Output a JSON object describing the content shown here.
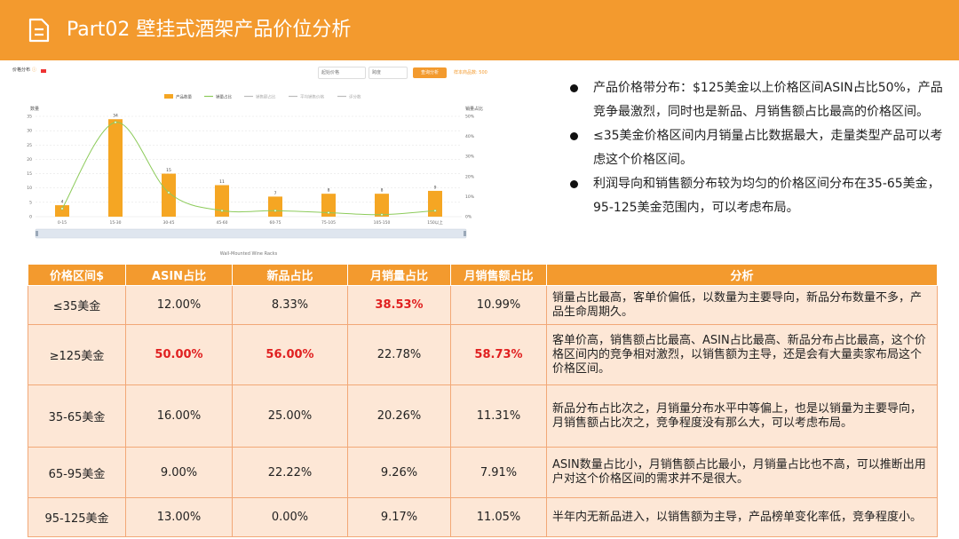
{
  "header": {
    "title": "Part02 壁挂式酒架产品价位分析",
    "icon": "document-icon",
    "background": "#F39A2E"
  },
  "widget": {
    "title": "价格分布",
    "start_price_placeholder": "起始价格",
    "price_placeholder": "跨度",
    "query_button": "查询分析",
    "sample_text": "样本商品数: 500"
  },
  "chart_data": {
    "type": "bar",
    "categories": [
      "0-15",
      "15-30",
      "30-45",
      "45-60",
      "60-75",
      "75-105",
      "105-150",
      "150以上"
    ],
    "series": [
      {
        "name": "产品数量",
        "values": [
          4,
          34,
          15,
          11,
          7,
          8,
          8,
          9
        ],
        "color": "#F5A623"
      },
      {
        "name": "销量占比",
        "values": [
          4,
          47,
          12,
          3,
          3,
          2,
          1,
          3
        ],
        "color": "#8DCB5B"
      }
    ],
    "legend": [
      "产品数量",
      "销量占比",
      "销售额占比",
      "平均销售价格",
      "评分数"
    ],
    "ylabel_left": "数量",
    "ylabel_right": "销量占比",
    "left_ticks": [
      "0",
      "5",
      "10",
      "15",
      "20",
      "25",
      "30",
      "35"
    ],
    "right_ticks": [
      "0%",
      "10%",
      "20%",
      "30%",
      "40%",
      "50%"
    ],
    "ylim": [
      0,
      35
    ],
    "ylim_right": [
      0,
      50
    ],
    "xlabel": "Wall-Mounted Wine Racks"
  },
  "bullets": [
    "产品价格带分布：$125美金以上价格区间ASIN占比50%，产品竞争最激烈，同时也是新品、月销售额占比最高的价格区间。",
    "≤35美金价格区间内月销量占比数据最大，走量类型产品可以考虑这个价格区间。",
    "利润导向和销售额分布较为均匀的价格区间分布在35-65美金，95-125美金范围内，可以考虑布局。"
  ],
  "table": {
    "headers": [
      "价格区间$",
      "ASIN占比",
      "新品占比",
      "月销量占比",
      "月销售额占比",
      "分析"
    ],
    "rows": [
      [
        "≤35美金",
        "12.00%",
        "8.33%",
        "38.53%",
        "10.99%",
        "销量占比最高，客单价偏低，以数量为主要导向，新品分布数量不多，产品生命周期久。"
      ],
      [
        "≥125美金",
        "50.00%",
        "56.00%",
        "22.78%",
        "58.73%",
        "客单价高，销售额占比最高、ASIN占比最高、新品分布占比最高，这个价格区间内的竞争相对激烈，以销售额为主导，还是会有大量卖家布局这个价格区间。"
      ],
      [
        "35-65美金",
        "16.00%",
        "25.00%",
        "20.26%",
        "11.31%",
        "新品分布占比次之，月销量分布水平中等偏上，也是以销量为主要导向，月销售额占比次之，竞争程度没有那么大，可以考虑布局。"
      ],
      [
        "65-95美金",
        "9.00%",
        "22.22%",
        "9.26%",
        "7.91%",
        "ASIN数量占比小，月销售额占比最小，月销量占比也不高，可以推断出用户对这个价格区间的需求并不是很大。"
      ],
      [
        "95-125美金",
        "13.00%",
        "0.00%",
        "9.17%",
        "11.05%",
        "半年内无新品进入，以销售额为主导，产品榜单变化率低，竞争程度小。"
      ]
    ],
    "highlights": [
      [
        0,
        3
      ],
      [
        1,
        1
      ],
      [
        1,
        2
      ],
      [
        1,
        4
      ]
    ],
    "highlight_color": "#E02020"
  }
}
